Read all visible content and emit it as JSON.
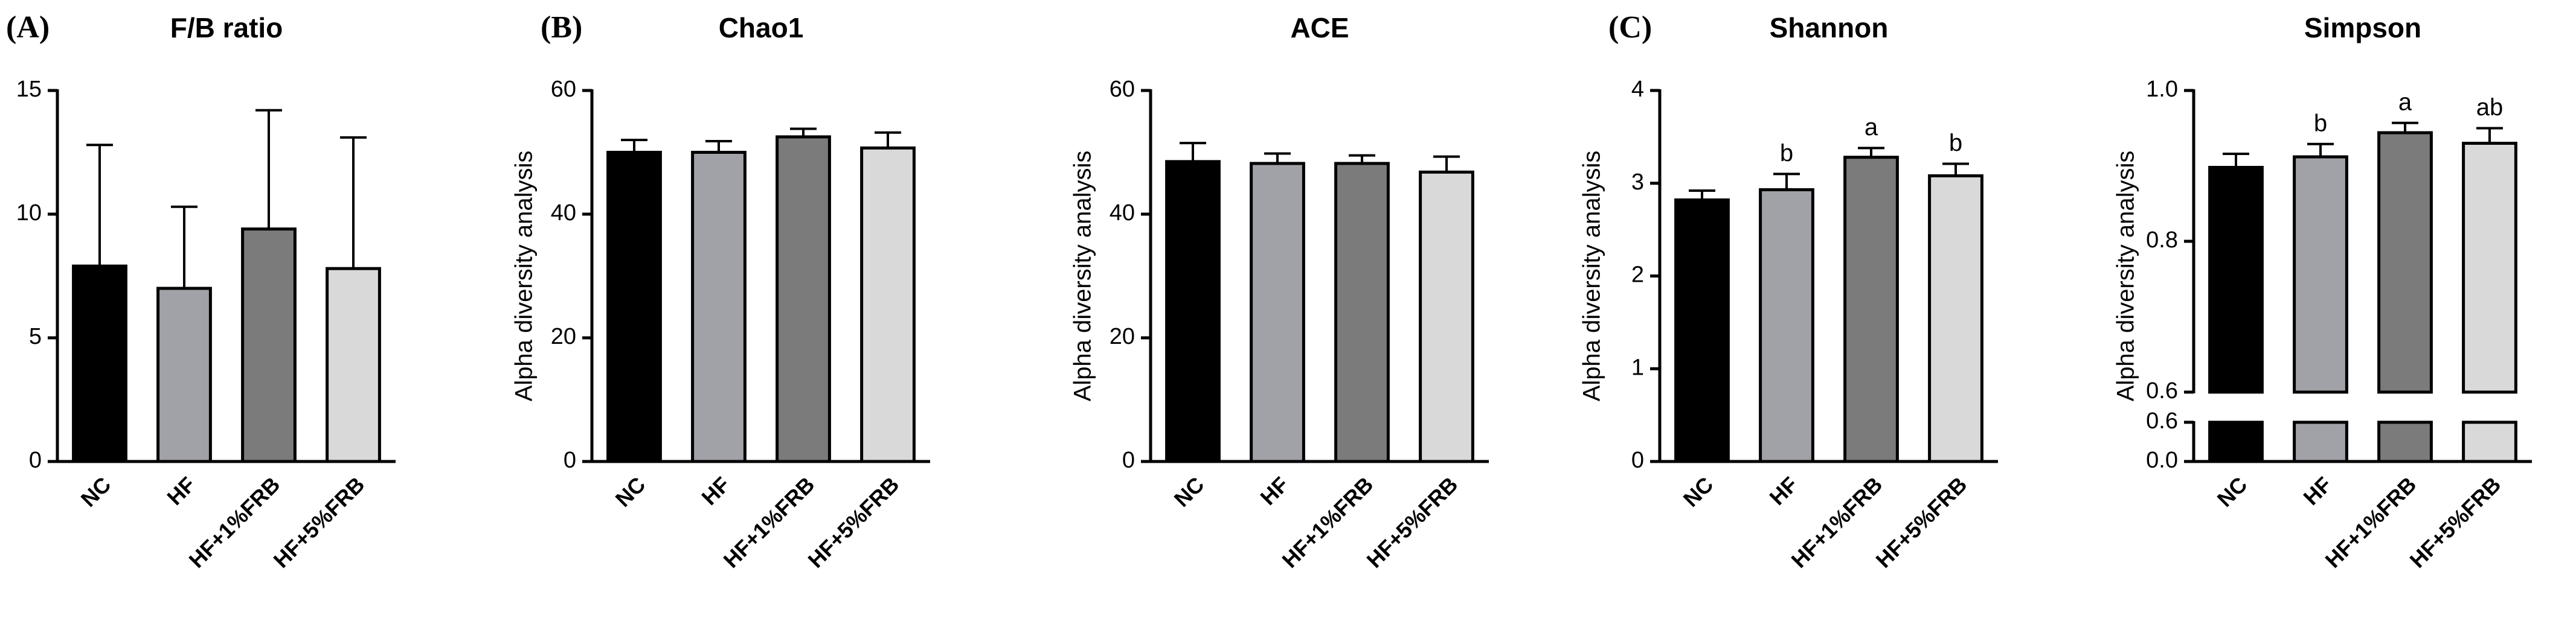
{
  "chart_data": [
    {
      "type": "bar",
      "panel_label": "(A)",
      "title": "F/B ratio",
      "categories": [
        "NC",
        "HF",
        "HF+1%FRB",
        "HF+5%FRB"
      ],
      "colors": [
        "#000000",
        "#a1a1a8",
        "#7b7b7b",
        "#d9d9d9"
      ],
      "values": [
        7.9,
        7.0,
        9.4,
        7.8
      ],
      "errors": [
        4.9,
        3.3,
        4.8,
        5.3
      ],
      "ylim": [
        0,
        15
      ],
      "yticks": [
        0,
        5,
        10,
        15
      ]
    },
    {
      "type": "bar",
      "panel_label": "(B)",
      "title": "Chao1",
      "ylabel": "Alpha diversity analysis",
      "categories": [
        "NC",
        "HF",
        "HF+1%FRB",
        "HF+5%FRB"
      ],
      "colors": [
        "#000000",
        "#a1a1a8",
        "#7b7b7b",
        "#d9d9d9"
      ],
      "values": [
        50,
        50,
        52.5,
        50.7
      ],
      "errors": [
        2,
        1.8,
        1.3,
        2.5
      ],
      "ylim": [
        0,
        60
      ],
      "yticks": [
        0,
        20,
        40,
        60
      ]
    },
    {
      "type": "bar",
      "title": "ACE",
      "ylabel": "Alpha diversity analysis",
      "categories": [
        "NC",
        "HF",
        "HF+1%FRB",
        "HF+5%FRB"
      ],
      "colors": [
        "#000000",
        "#a1a1a8",
        "#7b7b7b",
        "#d9d9d9"
      ],
      "values": [
        48.5,
        48.2,
        48.2,
        46.8
      ],
      "errors": [
        3,
        1.6,
        1.3,
        2.5
      ],
      "ylim": [
        0,
        60
      ],
      "yticks": [
        0,
        20,
        40,
        60
      ]
    },
    {
      "type": "bar",
      "panel_label": "(C)",
      "title": "Shannon",
      "ylabel": "Alpha diversity analysis",
      "categories": [
        "NC",
        "HF",
        "HF+1%FRB",
        "HF+5%FRB"
      ],
      "colors": [
        "#000000",
        "#a1a1a8",
        "#7b7b7b",
        "#d9d9d9"
      ],
      "values": [
        2.82,
        2.93,
        3.28,
        3.08
      ],
      "errors": [
        0.1,
        0.17,
        0.1,
        0.13
      ],
      "letters": [
        null,
        "b",
        "a",
        "b"
      ],
      "ylim": [
        0,
        4
      ],
      "yticks": [
        0,
        1,
        2,
        3,
        4
      ]
    },
    {
      "type": "bar",
      "title": "Simpson",
      "ylabel": "Alpha diversity analysis",
      "categories": [
        "NC",
        "HF",
        "HF+1%FRB",
        "HF+5%FRB"
      ],
      "colors": [
        "#000000",
        "#a1a1a8",
        "#7b7b7b",
        "#d9d9d9"
      ],
      "values": [
        0.898,
        0.912,
        0.944,
        0.93
      ],
      "errors": [
        0.018,
        0.017,
        0.013,
        0.02
      ],
      "letters": [
        null,
        "b",
        "a",
        "ab"
      ],
      "ysegments": [
        {
          "ylim": [
            0,
            0.6
          ],
          "yticks": [
            {
              "value": 0,
              "label": "0.0"
            },
            {
              "value": 0.6,
              "label": "0.6"
            }
          ]
        },
        {
          "ylim": [
            0.6,
            1.0
          ],
          "yticks": [
            {
              "value": 0.6,
              "label": "0.6"
            },
            {
              "value": 0.8,
              "label": "0.8"
            },
            {
              "value": 1.0,
              "label": "1.0"
            }
          ]
        }
      ]
    }
  ]
}
